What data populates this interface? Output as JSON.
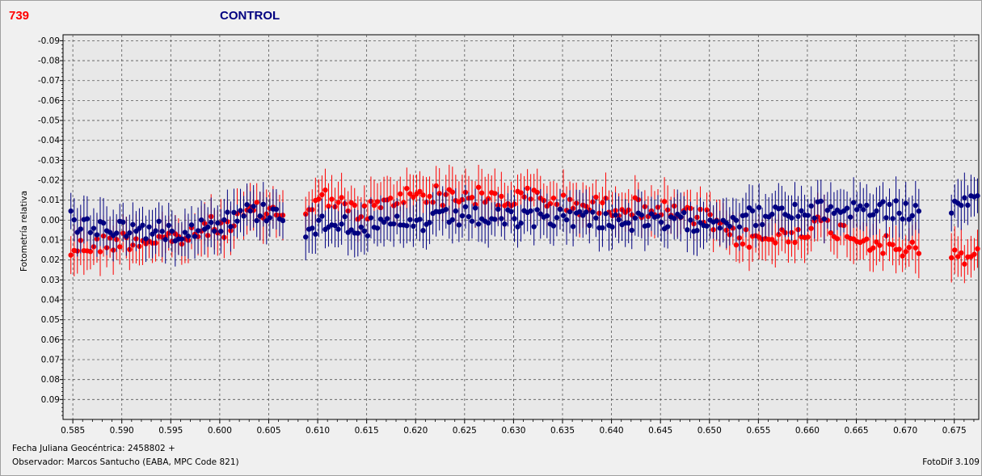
{
  "header": {
    "left_label": "739",
    "center_label": "CONTROL"
  },
  "footer": {
    "jd_label": "Fecha Juliana Geocéntrica: 2458802 +",
    "observer": "Observador: Marcos Santucho (EABA, MPC Code 821)",
    "software": "FotoDif 3.109"
  },
  "colors": {
    "target": "#ff0000",
    "control": "#000080",
    "plot_bg": "#e8e8e8",
    "grid": "#555555"
  },
  "chart_data": {
    "type": "scatter",
    "ylabel": "Fotometría relativa",
    "xlabel": "",
    "xlim": [
      0.584,
      0.6775
    ],
    "ylim": [
      -0.093,
      0.1
    ],
    "y_inverted_display": true,
    "x_ticks": [
      0.585,
      0.59,
      0.595,
      0.6,
      0.605,
      0.61,
      0.615,
      0.62,
      0.625,
      0.63,
      0.635,
      0.64,
      0.645,
      0.65,
      0.655,
      0.66,
      0.665,
      0.67,
      0.675
    ],
    "x_tick_labels": [
      "0.585",
      "0.590",
      "0.595",
      "0.600",
      "0.605",
      "0.610",
      "0.615",
      "0.620",
      "0.625",
      "0.630",
      "0.635",
      "0.640",
      "0.645",
      "0.650",
      "0.655",
      "0.660",
      "0.665",
      "0.670",
      "0.675"
    ],
    "y_ticks": [
      -0.09,
      -0.08,
      -0.07,
      -0.06,
      -0.05,
      -0.04,
      -0.03,
      -0.02,
      -0.01,
      0.0,
      0.01,
      0.02,
      0.03,
      0.04,
      0.05,
      0.06,
      0.07,
      0.08,
      0.09
    ],
    "y_tick_labels": [
      "-0.09",
      "-0.08",
      "-0.07",
      "-0.06",
      "-0.05",
      "-0.04",
      "-0.03",
      "-0.02",
      "-0.01",
      "0.00",
      "0.01",
      "0.02",
      "0.03",
      "0.04",
      "0.05",
      "0.06",
      "0.07",
      "0.08",
      "0.09"
    ],
    "grid": true,
    "series": [
      {
        "key": "target",
        "color": "#ff0000",
        "error": 0.01,
        "gaps": [
          [
            0.6065,
            0.6085
          ],
          [
            0.6715,
            0.6745
          ]
        ],
        "segments": [
          [
            0.585,
            0.014
          ],
          [
            0.588,
            0.012
          ],
          [
            0.59,
            0.01
          ],
          [
            0.592,
            0.01
          ],
          [
            0.595,
            0.009
          ],
          [
            0.597,
            0.009
          ],
          [
            0.599,
            0.003
          ],
          [
            0.601,
            0.004
          ],
          [
            0.603,
            -0.004
          ],
          [
            0.6065,
            -0.004
          ],
          [
            0.6085,
            -0.004
          ],
          [
            0.611,
            -0.012
          ],
          [
            0.614,
            -0.003
          ],
          [
            0.617,
            -0.008
          ],
          [
            0.62,
            -0.014
          ],
          [
            0.623,
            -0.012
          ],
          [
            0.626,
            -0.012
          ],
          [
            0.629,
            -0.01
          ],
          [
            0.632,
            -0.012
          ],
          [
            0.635,
            -0.008
          ],
          [
            0.638,
            -0.007
          ],
          [
            0.641,
            -0.007
          ],
          [
            0.644,
            -0.006
          ],
          [
            0.648,
            -0.002
          ],
          [
            0.65,
            0.0
          ],
          [
            0.652,
            0.008
          ],
          [
            0.655,
            0.01
          ],
          [
            0.658,
            0.008
          ],
          [
            0.661,
            0.002
          ],
          [
            0.664,
            0.006
          ],
          [
            0.666,
            0.01
          ],
          [
            0.669,
            0.014
          ],
          [
            0.6715,
            0.016
          ],
          [
            0.6745,
            0.02
          ],
          [
            0.6775,
            0.016
          ]
        ]
      },
      {
        "key": "control",
        "color": "#000080",
        "error": 0.01,
        "gaps": [
          [
            0.6065,
            0.6085
          ],
          [
            0.6715,
            0.6745
          ]
        ],
        "segments": [
          [
            0.585,
            0.003
          ],
          [
            0.59,
            0.004
          ],
          [
            0.595,
            0.006
          ],
          [
            0.6,
            0.001
          ],
          [
            0.603,
            -0.004
          ],
          [
            0.6065,
            -0.004
          ],
          [
            0.6085,
            0.005
          ],
          [
            0.612,
            0.0
          ],
          [
            0.615,
            0.004
          ],
          [
            0.62,
            0.002
          ],
          [
            0.625,
            -0.002
          ],
          [
            0.63,
            0.0
          ],
          [
            0.635,
            -0.002
          ],
          [
            0.64,
            0.0
          ],
          [
            0.645,
            0.002
          ],
          [
            0.65,
            0.0
          ],
          [
            0.655,
            -0.002
          ],
          [
            0.66,
            -0.004
          ],
          [
            0.665,
            -0.006
          ],
          [
            0.669,
            -0.005
          ],
          [
            0.6715,
            -0.004
          ],
          [
            0.6745,
            -0.005
          ],
          [
            0.6775,
            -0.008
          ]
        ]
      }
    ]
  }
}
